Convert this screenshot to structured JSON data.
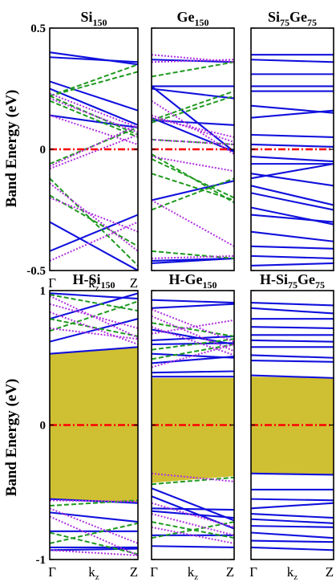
{
  "figure": {
    "ylabel": "Band Energy (eV)",
    "colors": {
      "blue_solid": "#1010dd",
      "green_dashed": "#1f9a1f",
      "purple_dotted": "#b030e0",
      "fermi_red": "#ff0000",
      "gap_fill": "#cfbf33"
    }
  },
  "chart_data": [
    {
      "type": "line",
      "row": 0,
      "col": 0,
      "title_main": "Si",
      "title_sub": "150",
      "ylim": [
        -0.5,
        0.5
      ],
      "yticks": [
        "0.5",
        "0",
        "-0.5"
      ],
      "xticks": [
        "Γ",
        "k",
        "z",
        "Z"
      ],
      "fermi": 0,
      "series": [
        {
          "style": "solid",
          "x": [
            0,
            1
          ],
          "values": [
            [
              0.4,
              0.35
            ],
            [
              0.38,
              0.36
            ],
            [
              0.25,
              0.1
            ],
            [
              0.14,
              0.09
            ],
            [
              -0.42,
              -0.27
            ],
            [
              -0.3,
              -0.5
            ],
            [
              0.28,
              0.16
            ]
          ]
        },
        {
          "style": "dashed",
          "x": [
            0,
            1
          ],
          "values": [
            [
              0.22,
              0.35
            ],
            [
              0.22,
              0.32
            ],
            [
              0.22,
              0.06
            ],
            [
              -0.06,
              0.09
            ],
            [
              -0.12,
              -0.48
            ],
            [
              -0.19,
              -0.4
            ],
            [
              0.2,
              0.05
            ]
          ]
        },
        {
          "style": "dotted",
          "x": [
            0,
            1
          ],
          "values": [
            [
              0.23,
              0.09
            ],
            [
              0.21,
              0.07
            ],
            [
              -0.07,
              0.1
            ],
            [
              -0.08,
              0.06
            ],
            [
              -0.14,
              -0.42
            ],
            [
              -0.2,
              -0.34
            ],
            [
              -0.46,
              -0.3
            ],
            [
              0.14,
              0.02
            ]
          ]
        }
      ]
    },
    {
      "type": "line",
      "row": 0,
      "col": 1,
      "title_main": "Ge",
      "title_sub": "150",
      "ylim": [
        -0.5,
        0.5
      ],
      "yticks": [],
      "xticks": [],
      "fermi": 0,
      "series": [
        {
          "style": "solid",
          "x": [
            0,
            1
          ],
          "values": [
            [
              0.37,
              0.36
            ],
            [
              0.26,
              0.26
            ],
            [
              0.25,
              0.21
            ],
            [
              0.13,
              -0.01
            ],
            [
              0.12,
              0.1
            ],
            [
              -0.21,
              -0.13
            ],
            [
              -0.46,
              -0.45
            ],
            [
              -0.47,
              -0.45
            ],
            [
              0.26,
              -0.01
            ]
          ]
        },
        {
          "style": "dashed",
          "x": [
            0,
            1
          ],
          "values": [
            [
              0.3,
              0.36
            ],
            [
              0.12,
              0.24
            ],
            [
              0.11,
              0.22
            ],
            [
              -0.02,
              -0.22
            ],
            [
              -0.04,
              -0.2
            ],
            [
              -0.1,
              -0.21
            ],
            [
              -0.25,
              -0.12
            ],
            [
              -0.42,
              -0.45
            ],
            [
              0.04,
              0.02
            ]
          ]
        },
        {
          "style": "dotted",
          "x": [
            0,
            1
          ],
          "values": [
            [
              0.39,
              0.36
            ],
            [
              0.36,
              0.37
            ],
            [
              0.14,
              0.03
            ],
            [
              0.13,
              0.05
            ],
            [
              0.04,
              0.02
            ],
            [
              -0.03,
              -0.09
            ],
            [
              -0.21,
              -0.4
            ],
            [
              -0.45,
              -0.44
            ],
            [
              0.2,
              -0.02
            ]
          ]
        }
      ]
    },
    {
      "type": "line",
      "row": 0,
      "col": 2,
      "title_main": "Si",
      "title_sub": "75",
      "title_main2": "Ge",
      "title_sub2": "75",
      "ylim": [
        -0.5,
        0.5
      ],
      "yticks": [],
      "xticks": [],
      "fermi": 0,
      "series": [
        {
          "style": "solid",
          "x": [
            0,
            1
          ],
          "values": [
            [
              0.39,
              0.39
            ],
            [
              0.37,
              0.36
            ],
            [
              0.31,
              0.31
            ],
            [
              0.26,
              0.26
            ],
            [
              0.24,
              0.24
            ],
            [
              0.18,
              0.15
            ],
            [
              0.13,
              0.16
            ],
            [
              0.06,
              0.05
            ],
            [
              0.02,
              0.01
            ],
            [
              -0.03,
              -0.05
            ],
            [
              -0.06,
              -0.06
            ],
            [
              -0.1,
              -0.15
            ],
            [
              -0.12,
              -0.06
            ],
            [
              -0.15,
              -0.23
            ],
            [
              -0.18,
              -0.25
            ],
            [
              -0.24,
              -0.31
            ],
            [
              -0.27,
              -0.3
            ],
            [
              -0.34,
              -0.38
            ],
            [
              -0.4,
              -0.41
            ],
            [
              -0.44,
              -0.45
            ],
            [
              -0.48,
              -0.47
            ]
          ]
        }
      ]
    },
    {
      "type": "line",
      "row": 1,
      "col": 0,
      "title_main": "H-Si",
      "title_sub": "150",
      "ylim": [
        -1,
        1
      ],
      "yticks": [
        "1",
        "0",
        "-1"
      ],
      "xticks": [
        "Γ",
        "k",
        "z",
        "Z"
      ],
      "fermi": 0,
      "gap": [
        [
          -0.55,
          0.53
        ],
        [
          -0.58,
          0.58
        ]
      ],
      "series": [
        {
          "style": "solid",
          "x": [
            0,
            1
          ],
          "values": [
            [
              0.53,
              0.58
            ],
            [
              0.62,
              0.79
            ],
            [
              0.98,
              0.94
            ],
            [
              0.79,
              0.98
            ],
            [
              -0.55,
              -0.58
            ],
            [
              -0.65,
              -0.72
            ],
            [
              -0.79,
              -0.79
            ],
            [
              -0.91,
              -0.91
            ],
            [
              -0.93,
              -0.92
            ]
          ]
        },
        {
          "style": "dashed",
          "x": [
            0,
            1
          ],
          "values": [
            [
              0.7,
              0.92
            ],
            [
              0.79,
              0.66
            ],
            [
              0.97,
              0.85
            ],
            [
              -0.8,
              -0.96
            ],
            [
              -0.88,
              -0.73
            ],
            [
              -0.6,
              -0.56
            ]
          ]
        },
        {
          "style": "dotted",
          "x": [
            0,
            1
          ],
          "values": [
            [
              0.96,
              0.65
            ],
            [
              0.9,
              0.72
            ],
            [
              0.84,
              0.6
            ],
            [
              0.72,
              0.64
            ],
            [
              -0.68,
              -0.97
            ],
            [
              -0.62,
              -0.88
            ],
            [
              -0.93,
              -0.97
            ],
            [
              -0.56,
              -0.57
            ]
          ]
        }
      ]
    },
    {
      "type": "line",
      "row": 1,
      "col": 1,
      "title_main": "H-Ge",
      "title_sub": "150",
      "ylim": [
        -1,
        1
      ],
      "yticks": [],
      "xticks": [
        "Γ",
        "k",
        "z",
        "Z"
      ],
      "fermi": 0,
      "gap": [
        [
          -0.43,
          0.35
        ],
        [
          -0.38,
          0.35
        ]
      ],
      "series": [
        {
          "style": "solid",
          "x": [
            0,
            1
          ],
          "values": [
            [
              0.36,
              0.36
            ],
            [
              0.39,
              0.4
            ],
            [
              0.46,
              0.51
            ],
            [
              0.53,
              0.5
            ],
            [
              0.6,
              0.61
            ],
            [
              0.63,
              0.66
            ],
            [
              0.71,
              0.6
            ],
            [
              0.87,
              0.9
            ],
            [
              0.93,
              0.91
            ],
            [
              -0.47,
              -0.71
            ],
            [
              -0.53,
              -0.77
            ],
            [
              -0.62,
              -0.63
            ],
            [
              -0.64,
              -0.69
            ],
            [
              -0.82,
              -0.82
            ],
            [
              -0.9,
              -0.91
            ]
          ]
        },
        {
          "style": "dashed",
          "x": [
            0,
            1
          ],
          "values": [
            [
              0.49,
              0.6
            ],
            [
              0.56,
              0.64
            ],
            [
              0.76,
              0.66
            ],
            [
              -0.44,
              -0.39
            ],
            [
              -0.72,
              -0.84
            ],
            [
              -0.84,
              -0.72
            ]
          ]
        },
        {
          "style": "dotted",
          "x": [
            0,
            1
          ],
          "values": [
            [
              0.68,
              0.78
            ],
            [
              0.73,
              0.52
            ],
            [
              0.81,
              0.55
            ],
            [
              0.86,
              0.62
            ],
            [
              0.43,
              0.6
            ],
            [
              -0.36,
              -0.42
            ],
            [
              -0.58,
              -0.76
            ],
            [
              -0.66,
              -0.82
            ],
            [
              -0.76,
              -0.88
            ]
          ]
        }
      ]
    },
    {
      "type": "line",
      "row": 1,
      "col": 2,
      "title_main": "H-Si",
      "title_sub": "75",
      "title_main2": "Ge",
      "title_sub2": "75",
      "ylim": [
        -1,
        1
      ],
      "yticks": [],
      "xticks": [
        "Γ",
        "k",
        "z",
        "Z"
      ],
      "fermi": 0,
      "gap": [
        [
          -0.36,
          0.36
        ],
        [
          -0.37,
          0.35
        ]
      ],
      "series": [
        {
          "style": "solid",
          "x": [
            0,
            1
          ],
          "values": [
            [
              0.37,
              0.35
            ],
            [
              0.48,
              0.47
            ],
            [
              0.52,
              0.5
            ],
            [
              0.58,
              0.58
            ],
            [
              0.63,
              0.62
            ],
            [
              0.67,
              0.67
            ],
            [
              0.73,
              0.72
            ],
            [
              0.79,
              0.79
            ],
            [
              0.87,
              0.83
            ],
            [
              0.91,
              0.89
            ],
            [
              -0.36,
              -0.37
            ],
            [
              -0.48,
              -0.48
            ],
            [
              -0.55,
              -0.56
            ],
            [
              -0.62,
              -0.58
            ],
            [
              -0.66,
              -0.69
            ],
            [
              -0.7,
              -0.73
            ],
            [
              -0.75,
              -0.76
            ],
            [
              -0.8,
              -0.84
            ],
            [
              -0.86,
              -0.87
            ],
            [
              -0.91,
              -0.93
            ]
          ]
        }
      ]
    }
  ]
}
